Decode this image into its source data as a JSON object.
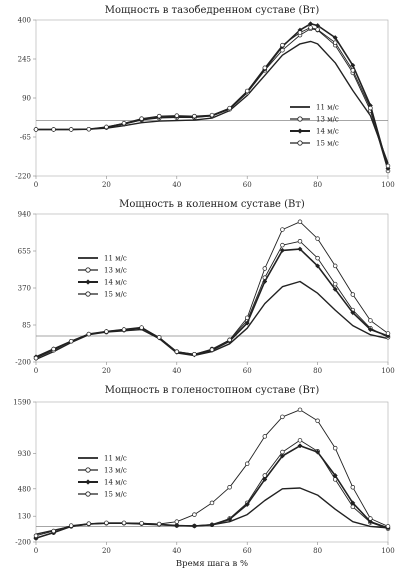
{
  "chart_data": [
    {
      "type": "line",
      "title": "Мощность в тазобедренном суставе (Вт)",
      "xlim": [
        0,
        100
      ],
      "ylim": [
        -220,
        400
      ],
      "xticks": [
        "0",
        "20",
        "40",
        "60",
        "80",
        "100"
      ],
      "yticks": [
        "400",
        "245",
        "90",
        "-65",
        "-220"
      ],
      "legend_position": "right",
      "x": [
        0,
        5,
        10,
        15,
        20,
        25,
        30,
        35,
        40,
        45,
        50,
        55,
        60,
        65,
        70,
        75,
        78,
        80,
        85,
        90,
        95,
        100
      ],
      "series": [
        {
          "name": "11 м/с",
          "values": [
            -35,
            -35,
            -35,
            -34,
            -30,
            -20,
            -8,
            -2,
            0,
            2,
            10,
            40,
            100,
            180,
            260,
            305,
            315,
            305,
            230,
            120,
            20,
            -170
          ]
        },
        {
          "name": "13 м/с",
          "values": [
            -35,
            -35,
            -35,
            -34,
            -28,
            -14,
            2,
            10,
            12,
            12,
            18,
            45,
            110,
            200,
            280,
            340,
            365,
            360,
            300,
            190,
            40,
            -200
          ]
        },
        {
          "name": "14 м/с",
          "values": [
            -35,
            -35,
            -35,
            -34,
            -26,
            -12,
            4,
            14,
            16,
            15,
            20,
            48,
            115,
            205,
            295,
            360,
            385,
            378,
            330,
            220,
            60,
            -190
          ]
        },
        {
          "name": "15 м/с",
          "values": [
            -35,
            -35,
            -35,
            -34,
            -25,
            -10,
            8,
            18,
            20,
            18,
            22,
            50,
            118,
            210,
            300,
            350,
            370,
            362,
            310,
            200,
            50,
            -180
          ]
        }
      ]
    },
    {
      "type": "line",
      "title": "Мощность в коленном суставе (Вт)",
      "xlim": [
        0,
        100
      ],
      "ylim": [
        -200,
        940
      ],
      "xticks": [
        "0",
        "20",
        "40",
        "60",
        "80",
        "100"
      ],
      "yticks": [
        "940",
        "655",
        "370",
        "85",
        "-200"
      ],
      "legend_position": "left",
      "x": [
        0,
        5,
        10,
        15,
        20,
        25,
        30,
        35,
        40,
        45,
        50,
        55,
        60,
        65,
        70,
        75,
        80,
        85,
        90,
        95,
        100
      ],
      "series": [
        {
          "name": "11 м/с",
          "values": [
            -180,
            -120,
            -50,
            10,
            30,
            40,
            50,
            -20,
            -130,
            -150,
            -120,
            -60,
            60,
            250,
            380,
            420,
            330,
            200,
            80,
            10,
            -20
          ]
        },
        {
          "name": "13 м/с",
          "values": [
            -170,
            -110,
            -40,
            15,
            30,
            45,
            60,
            -10,
            -120,
            -140,
            -100,
            -30,
            120,
            450,
            700,
            730,
            600,
            400,
            200,
            60,
            -10
          ]
        },
        {
          "name": "14 м/с",
          "values": [
            -160,
            -100,
            -40,
            15,
            35,
            50,
            65,
            -15,
            -125,
            -145,
            -110,
            -40,
            100,
            420,
            660,
            670,
            540,
            360,
            180,
            50,
            0
          ]
        },
        {
          "name": "15 м/с",
          "values": [
            -170,
            -100,
            -40,
            15,
            35,
            50,
            65,
            -10,
            -120,
            -140,
            -105,
            -30,
            140,
            520,
            820,
            880,
            750,
            540,
            320,
            120,
            20
          ]
        }
      ]
    },
    {
      "type": "line",
      "title": "Мощность в голеностопном суставе (Вт)",
      "xlim": [
        0,
        100
      ],
      "ylim": [
        -200,
        1590
      ],
      "xticks": [
        "0",
        "20",
        "40",
        "60",
        "80",
        "100"
      ],
      "yticks": [
        "1590",
        "930",
        "480",
        "130",
        "-200"
      ],
      "xlabel": "Время шага в %",
      "legend_position": "left",
      "x": [
        0,
        5,
        10,
        15,
        20,
        25,
        30,
        35,
        40,
        45,
        50,
        55,
        60,
        65,
        70,
        75,
        80,
        85,
        90,
        95,
        100
      ],
      "series": [
        {
          "name": "11 м/с",
          "values": [
            -100,
            -50,
            0,
            30,
            40,
            40,
            30,
            20,
            10,
            5,
            20,
            60,
            150,
            330,
            480,
            490,
            400,
            220,
            60,
            0,
            -20
          ]
        },
        {
          "name": "13 м/с",
          "values": [
            -150,
            -80,
            0,
            30,
            40,
            40,
            35,
            25,
            10,
            5,
            20,
            100,
            300,
            650,
            950,
            1100,
            960,
            600,
            250,
            50,
            -30
          ]
        },
        {
          "name": "14 м/с",
          "values": [
            -150,
            -80,
            0,
            30,
            40,
            40,
            35,
            25,
            10,
            5,
            20,
            90,
            280,
            600,
            900,
            1030,
            950,
            650,
            300,
            60,
            -20
          ]
        },
        {
          "name": "15 м/с",
          "values": [
            -120,
            -60,
            10,
            35,
            45,
            45,
            40,
            30,
            60,
            150,
            300,
            500,
            800,
            1150,
            1400,
            1490,
            1350,
            1000,
            500,
            100,
            0
          ]
        }
      ]
    }
  ],
  "styles": {
    "line_color": "#222222",
    "marker_fill_open": "#ffffff",
    "marker_fill_solid": "#222222"
  }
}
